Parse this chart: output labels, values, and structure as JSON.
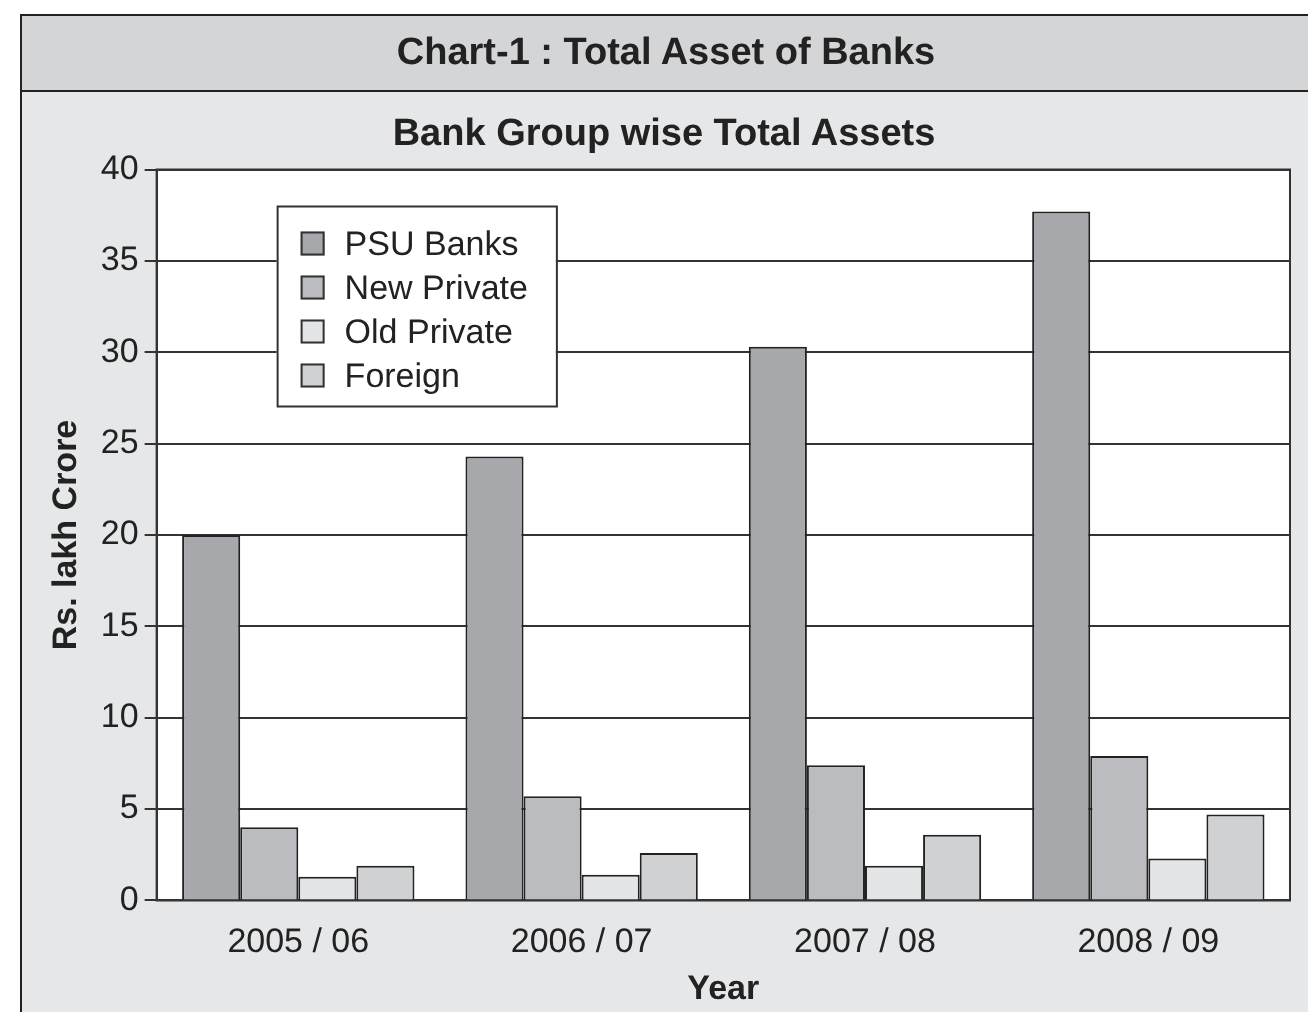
{
  "chart_data": {
    "type": "bar",
    "title": "Chart-1 : Total Asset of Banks",
    "subtitle": "Bank Group wise Total Assets",
    "xlabel": "Year",
    "ylabel": "Rs. lakh Crore",
    "categories": [
      "2005 / 06",
      "2006 / 07",
      "2007 / 08",
      "2008 / 09"
    ],
    "series": [
      {
        "name": "PSU Banks",
        "color": "#a7a8ab",
        "values": [
          20.0,
          24.3,
          30.3,
          37.7
        ]
      },
      {
        "name": "New Private",
        "color": "#bbbcbf",
        "values": [
          4.0,
          5.7,
          7.4,
          7.9
        ]
      },
      {
        "name": "Old Private",
        "color": "#e4e5e6",
        "values": [
          1.3,
          1.4,
          1.9,
          2.3
        ]
      },
      {
        "name": "Foreign",
        "color": "#d0d1d3",
        "values": [
          1.9,
          2.6,
          3.6,
          4.7
        ]
      }
    ],
    "ylim": [
      0,
      40
    ],
    "yticks": [
      0,
      5,
      10,
      15,
      20,
      25,
      30,
      35,
      40
    ],
    "grid": "y",
    "legend": "top left"
  }
}
